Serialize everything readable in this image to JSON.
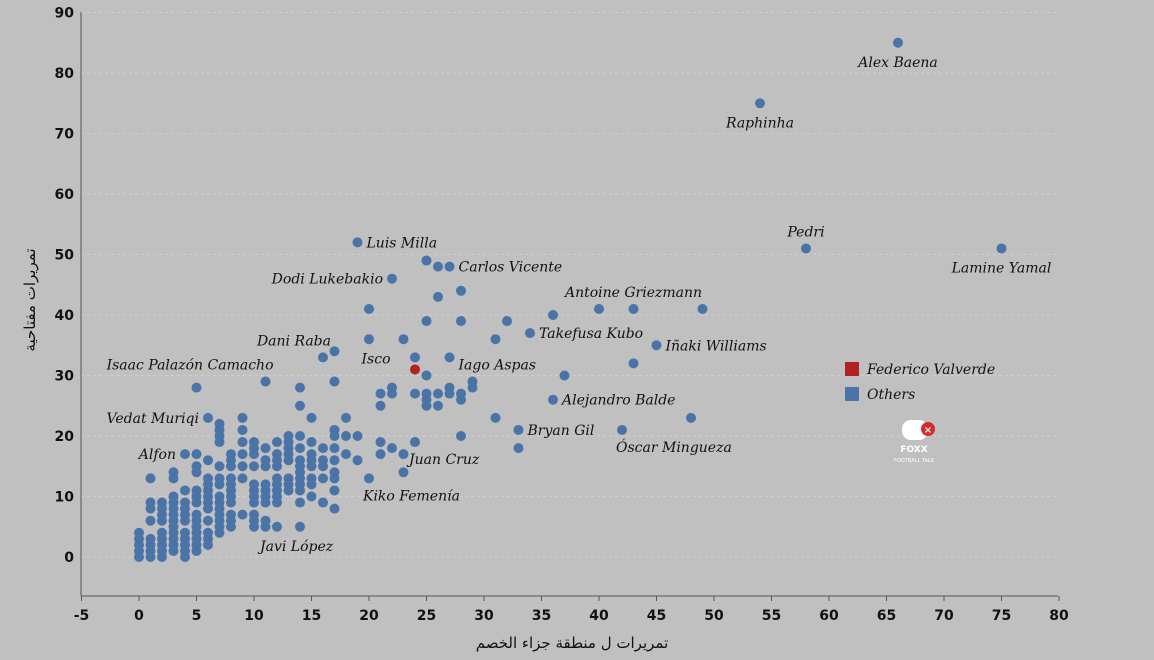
{
  "chart_data": {
    "type": "scatter",
    "title": "",
    "xlabel": "تمريرات ل منطقة جزاء الخصم",
    "ylabel": "تمريرات مفتاحية",
    "xlim": [
      -5,
      80
    ],
    "ylim": [
      -6,
      90
    ],
    "xticks": [
      -5,
      0,
      5,
      10,
      15,
      20,
      25,
      30,
      35,
      40,
      45,
      50,
      55,
      60,
      65,
      70,
      75,
      80
    ],
    "yticks": [
      0,
      10,
      20,
      30,
      40,
      50,
      60,
      70,
      80,
      90
    ],
    "grid": true,
    "legend_position": "right",
    "colors": {
      "highlight": "#b22222",
      "others": "#4a73a8"
    },
    "series": [
      {
        "name": "Federico Valverde",
        "points": [
          [
            24,
            31
          ]
        ]
      },
      {
        "name": "Others",
        "points": [
          [
            66,
            85
          ],
          [
            54,
            75
          ],
          [
            58,
            51
          ],
          [
            75,
            51
          ],
          [
            19,
            52
          ],
          [
            25,
            49
          ],
          [
            27,
            48
          ],
          [
            26,
            48
          ],
          [
            22,
            46
          ],
          [
            28,
            44
          ],
          [
            26,
            43
          ],
          [
            20,
            41
          ],
          [
            36,
            40
          ],
          [
            40,
            41
          ],
          [
            43,
            41
          ],
          [
            49,
            41
          ],
          [
            25,
            39
          ],
          [
            28,
            39
          ],
          [
            32,
            39
          ],
          [
            31,
            36
          ],
          [
            34,
            37
          ],
          [
            20,
            36
          ],
          [
            23,
            36
          ],
          [
            27,
            33
          ],
          [
            24,
            33
          ],
          [
            17,
            34
          ],
          [
            16,
            33
          ],
          [
            45,
            35
          ],
          [
            43,
            32
          ],
          [
            37,
            30
          ],
          [
            25,
            30
          ],
          [
            29,
            29
          ],
          [
            29,
            28
          ],
          [
            28,
            27
          ],
          [
            27,
            28
          ],
          [
            27,
            27
          ],
          [
            28,
            26
          ],
          [
            25,
            27
          ],
          [
            26,
            27
          ],
          [
            22,
            28
          ],
          [
            22,
            27
          ],
          [
            21,
            27
          ],
          [
            24,
            27
          ],
          [
            25,
            26
          ],
          [
            25,
            25
          ],
          [
            26,
            25
          ],
          [
            21,
            25
          ],
          [
            36,
            26
          ],
          [
            11,
            29
          ],
          [
            14,
            28
          ],
          [
            17,
            29
          ],
          [
            5,
            28
          ],
          [
            6,
            23
          ],
          [
            7,
            22
          ],
          [
            7,
            21
          ],
          [
            7,
            20
          ],
          [
            7,
            19
          ],
          [
            9,
            23
          ],
          [
            9,
            21
          ],
          [
            9,
            19
          ],
          [
            18,
            23
          ],
          [
            15,
            23
          ],
          [
            14,
            25
          ],
          [
            31,
            23
          ],
          [
            48,
            23
          ],
          [
            33,
            21
          ],
          [
            42,
            21
          ],
          [
            28,
            20
          ],
          [
            21,
            19
          ],
          [
            22,
            18
          ],
          [
            23,
            17
          ],
          [
            24,
            19
          ],
          [
            21,
            17
          ],
          [
            19,
            20
          ],
          [
            18,
            20
          ],
          [
            17,
            21
          ],
          [
            17,
            20
          ],
          [
            17,
            18
          ],
          [
            17,
            16
          ],
          [
            16,
            18
          ],
          [
            18,
            17
          ],
          [
            19,
            16
          ],
          [
            20,
            13
          ],
          [
            23,
            14
          ],
          [
            33,
            18
          ],
          [
            4,
            17
          ],
          [
            5,
            17
          ],
          [
            6,
            16
          ],
          [
            7,
            15
          ],
          [
            8,
            17
          ],
          [
            8,
            16
          ],
          [
            8,
            15
          ],
          [
            9,
            17
          ],
          [
            9,
            15
          ],
          [
            10,
            19
          ],
          [
            10,
            18
          ],
          [
            11,
            18
          ],
          [
            10,
            17
          ],
          [
            11,
            16
          ],
          [
            12,
            19
          ],
          [
            12,
            17
          ],
          [
            12,
            16
          ],
          [
            13,
            20
          ],
          [
            13,
            19
          ],
          [
            13,
            18
          ],
          [
            13,
            17
          ],
          [
            13,
            16
          ],
          [
            14,
            20
          ],
          [
            14,
            18
          ],
          [
            14,
            16
          ],
          [
            15,
            19
          ],
          [
            15,
            17
          ],
          [
            15,
            16
          ],
          [
            16,
            16
          ],
          [
            14,
            15
          ],
          [
            15,
            15
          ],
          [
            16,
            15
          ],
          [
            12,
            15
          ],
          [
            11,
            15
          ],
          [
            10,
            15
          ],
          [
            1,
            13
          ],
          [
            3,
            14
          ],
          [
            3,
            13
          ],
          [
            5,
            15
          ],
          [
            5,
            14
          ],
          [
            4,
            11
          ],
          [
            5,
            11
          ],
          [
            6,
            13
          ],
          [
            6,
            12
          ],
          [
            6,
            11
          ],
          [
            7,
            13
          ],
          [
            7,
            12
          ],
          [
            8,
            13
          ],
          [
            8,
            12
          ],
          [
            8,
            11
          ],
          [
            9,
            13
          ],
          [
            10,
            12
          ],
          [
            10,
            11
          ],
          [
            11,
            12
          ],
          [
            11,
            11
          ],
          [
            12,
            13
          ],
          [
            12,
            12
          ],
          [
            12,
            11
          ],
          [
            13,
            13
          ],
          [
            13,
            12
          ],
          [
            13,
            11
          ],
          [
            14,
            14
          ],
          [
            14,
            13
          ],
          [
            14,
            12
          ],
          [
            15,
            13
          ],
          [
            15,
            12
          ],
          [
            16,
            13
          ],
          [
            17,
            14
          ],
          [
            17,
            13
          ],
          [
            17,
            11
          ],
          [
            14,
            11
          ],
          [
            1,
            9
          ],
          [
            1,
            8
          ],
          [
            2,
            9
          ],
          [
            2,
            8
          ],
          [
            3,
            10
          ],
          [
            3,
            9
          ],
          [
            3,
            8
          ],
          [
            4,
            9
          ],
          [
            4,
            8
          ],
          [
            5,
            10
          ],
          [
            5,
            9
          ],
          [
            6,
            10
          ],
          [
            6,
            9
          ],
          [
            6,
            8
          ],
          [
            7,
            10
          ],
          [
            7,
            9
          ],
          [
            7,
            8
          ],
          [
            8,
            10
          ],
          [
            8,
            9
          ],
          [
            10,
            10
          ],
          [
            10,
            9
          ],
          [
            11,
            10
          ],
          [
            11,
            9
          ],
          [
            12,
            10
          ],
          [
            12,
            9
          ],
          [
            14,
            9
          ],
          [
            15,
            10
          ],
          [
            16,
            9
          ],
          [
            17,
            8
          ],
          [
            1,
            6
          ],
          [
            2,
            7
          ],
          [
            2,
            6
          ],
          [
            3,
            7
          ],
          [
            3,
            6
          ],
          [
            4,
            7
          ],
          [
            4,
            6
          ],
          [
            5,
            7
          ],
          [
            5,
            6
          ],
          [
            6,
            6
          ],
          [
            7,
            7
          ],
          [
            7,
            6
          ],
          [
            8,
            7
          ],
          [
            8,
            6
          ],
          [
            9,
            7
          ],
          [
            10,
            7
          ],
          [
            10,
            6
          ],
          [
            11,
            6
          ],
          [
            11,
            5
          ],
          [
            10,
            5
          ],
          [
            12,
            5
          ],
          [
            14,
            5
          ],
          [
            0,
            4
          ],
          [
            0,
            3
          ],
          [
            0,
            2
          ],
          [
            0,
            1
          ],
          [
            0,
            0
          ],
          [
            1,
            3
          ],
          [
            1,
            2
          ],
          [
            1,
            1
          ],
          [
            1,
            0
          ],
          [
            2,
            4
          ],
          [
            2,
            3
          ],
          [
            2,
            2
          ],
          [
            2,
            1
          ],
          [
            2,
            0
          ],
          [
            3,
            5
          ],
          [
            3,
            4
          ],
          [
            3,
            3
          ],
          [
            3,
            2
          ],
          [
            3,
            1
          ],
          [
            4,
            4
          ],
          [
            4,
            3
          ],
          [
            4,
            2
          ],
          [
            4,
            1
          ],
          [
            4,
            0
          ],
          [
            5,
            5
          ],
          [
            5,
            4
          ],
          [
            5,
            3
          ],
          [
            5,
            2
          ],
          [
            5,
            1
          ],
          [
            6,
            4
          ],
          [
            6,
            3
          ],
          [
            6,
            2
          ],
          [
            7,
            5
          ],
          [
            7,
            4
          ],
          [
            8,
            5
          ]
        ]
      }
    ],
    "annotations": [
      {
        "text": "Alex Baena",
        "x": 66,
        "y": 85,
        "pos": "below"
      },
      {
        "text": "Raphinha",
        "x": 54,
        "y": 75,
        "pos": "below"
      },
      {
        "text": "Pedri",
        "x": 58,
        "y": 51,
        "pos": "above"
      },
      {
        "text": "Lamine Yamal",
        "x": 75,
        "y": 51,
        "pos": "below"
      },
      {
        "text": "Luis Milla",
        "x": 19,
        "y": 52,
        "pos": "right"
      },
      {
        "text": "Carlos Vicente",
        "x": 27,
        "y": 48,
        "pos": "right"
      },
      {
        "text": "Dodi Lukebakio",
        "x": 22,
        "y": 46,
        "pos": "left"
      },
      {
        "text": "Antoine Griezmann",
        "x": 43,
        "y": 41,
        "pos": "above"
      },
      {
        "text": "Takefusa Kubo",
        "x": 34,
        "y": 37,
        "pos": "right"
      },
      {
        "text": "Dani Raba",
        "x": 16,
        "y": 33,
        "pos": "aboveleft"
      },
      {
        "text": "Iñaki Williams",
        "x": 45,
        "y": 35,
        "pos": "right"
      },
      {
        "text": "Isaac Palazón Camacho",
        "x": 11,
        "y": 29,
        "pos": "aboveleft"
      },
      {
        "text": "Isco",
        "x": 25,
        "y": 30,
        "pos": "aboveleft2"
      },
      {
        "text": "Iago Aspas",
        "x": 29,
        "y": 29,
        "pos": "aboveright"
      },
      {
        "text": "Alejandro Balde",
        "x": 36,
        "y": 26,
        "pos": "right"
      },
      {
        "text": "Vedat Muriqi",
        "x": 6,
        "y": 23,
        "pos": "left"
      },
      {
        "text": "Bryan Gil",
        "x": 33,
        "y": 21,
        "pos": "right"
      },
      {
        "text": "Óscar Mingueza",
        "x": 42,
        "y": 21,
        "pos": "belowright"
      },
      {
        "text": "Alfon",
        "x": 4,
        "y": 17,
        "pos": "left"
      },
      {
        "text": "Juan Cruz",
        "x": 24,
        "y": 19,
        "pos": "belowright"
      },
      {
        "text": "Kiko Femenía",
        "x": 20,
        "y": 13,
        "pos": "belowright"
      },
      {
        "text": "Javi López",
        "x": 14,
        "y": 5,
        "pos": "belowleft"
      }
    ]
  },
  "legend": {
    "items": [
      {
        "label": "Federico Valverde",
        "color": "#b22222"
      },
      {
        "label": "Others",
        "color": "#4a73a8"
      }
    ]
  },
  "watermark": {
    "text": "FOOTBALL TALK"
  }
}
